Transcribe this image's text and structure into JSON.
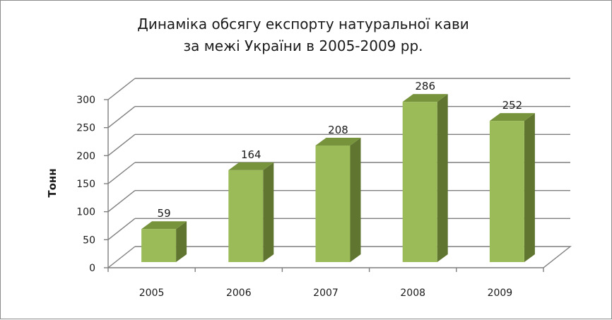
{
  "chart_data": {
    "type": "bar",
    "title_lines": [
      "Динаміка обсягу експорту натуральної кави",
      "за межі України в 2005-2009 рр."
    ],
    "xlabel": "",
    "ylabel": "Тонн",
    "categories": [
      "2005",
      "2006",
      "2007",
      "2008",
      "2009"
    ],
    "values": [
      59,
      164,
      208,
      286,
      252
    ],
    "ylim": [
      0,
      300
    ],
    "yticks": [
      0,
      50,
      100,
      150,
      200,
      250,
      300
    ],
    "grid": true,
    "legend": "none",
    "style": "3d-column",
    "colors": {
      "bar_front": "#9bbb59",
      "bar_top": "#77933c",
      "bar_side": "#5f7530",
      "grid": "#7f7f7f"
    }
  }
}
